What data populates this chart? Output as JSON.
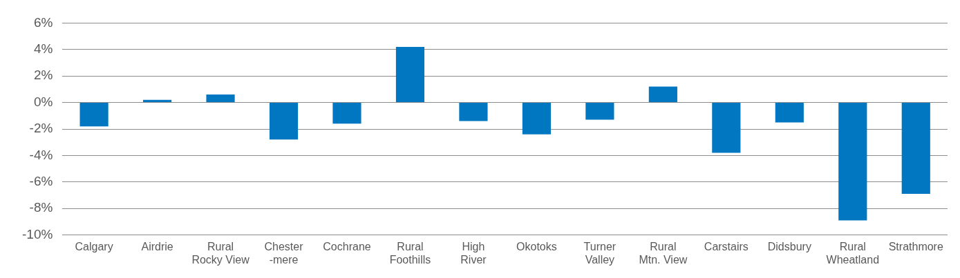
{
  "chart_data": {
    "type": "bar",
    "categories": [
      "Calgary",
      "Airdrie",
      "Rural\nRocky View",
      "Chester\n-mere",
      "Cochrane",
      "Rural\nFoothills",
      "High\nRiver",
      "Okotoks",
      "Turner\nValley",
      "Rural\nMtn. View",
      "Carstairs",
      "Didsbury",
      "Rural\nWheatland",
      "Strathmore"
    ],
    "values": [
      -1.8,
      0.2,
      0.6,
      -2.8,
      -1.6,
      4.2,
      -1.4,
      -2.4,
      -1.3,
      1.2,
      -3.8,
      -1.5,
      -8.9,
      -6.9
    ],
    "color": "#0077c0",
    "ylim": [
      -10,
      6
    ],
    "yticks": [
      {
        "value": -10,
        "label": "-10%"
      },
      {
        "value": -8,
        "label": "-8%"
      },
      {
        "value": -6,
        "label": "-6%"
      },
      {
        "value": -4,
        "label": "-4%"
      },
      {
        "value": -2,
        "label": "-2%"
      },
      {
        "value": 0,
        "label": "0%"
      },
      {
        "value": 2,
        "label": "2%"
      },
      {
        "value": 4,
        "label": "4%"
      },
      {
        "value": 6,
        "label": "6%"
      }
    ],
    "grid": "y",
    "legend": false
  }
}
